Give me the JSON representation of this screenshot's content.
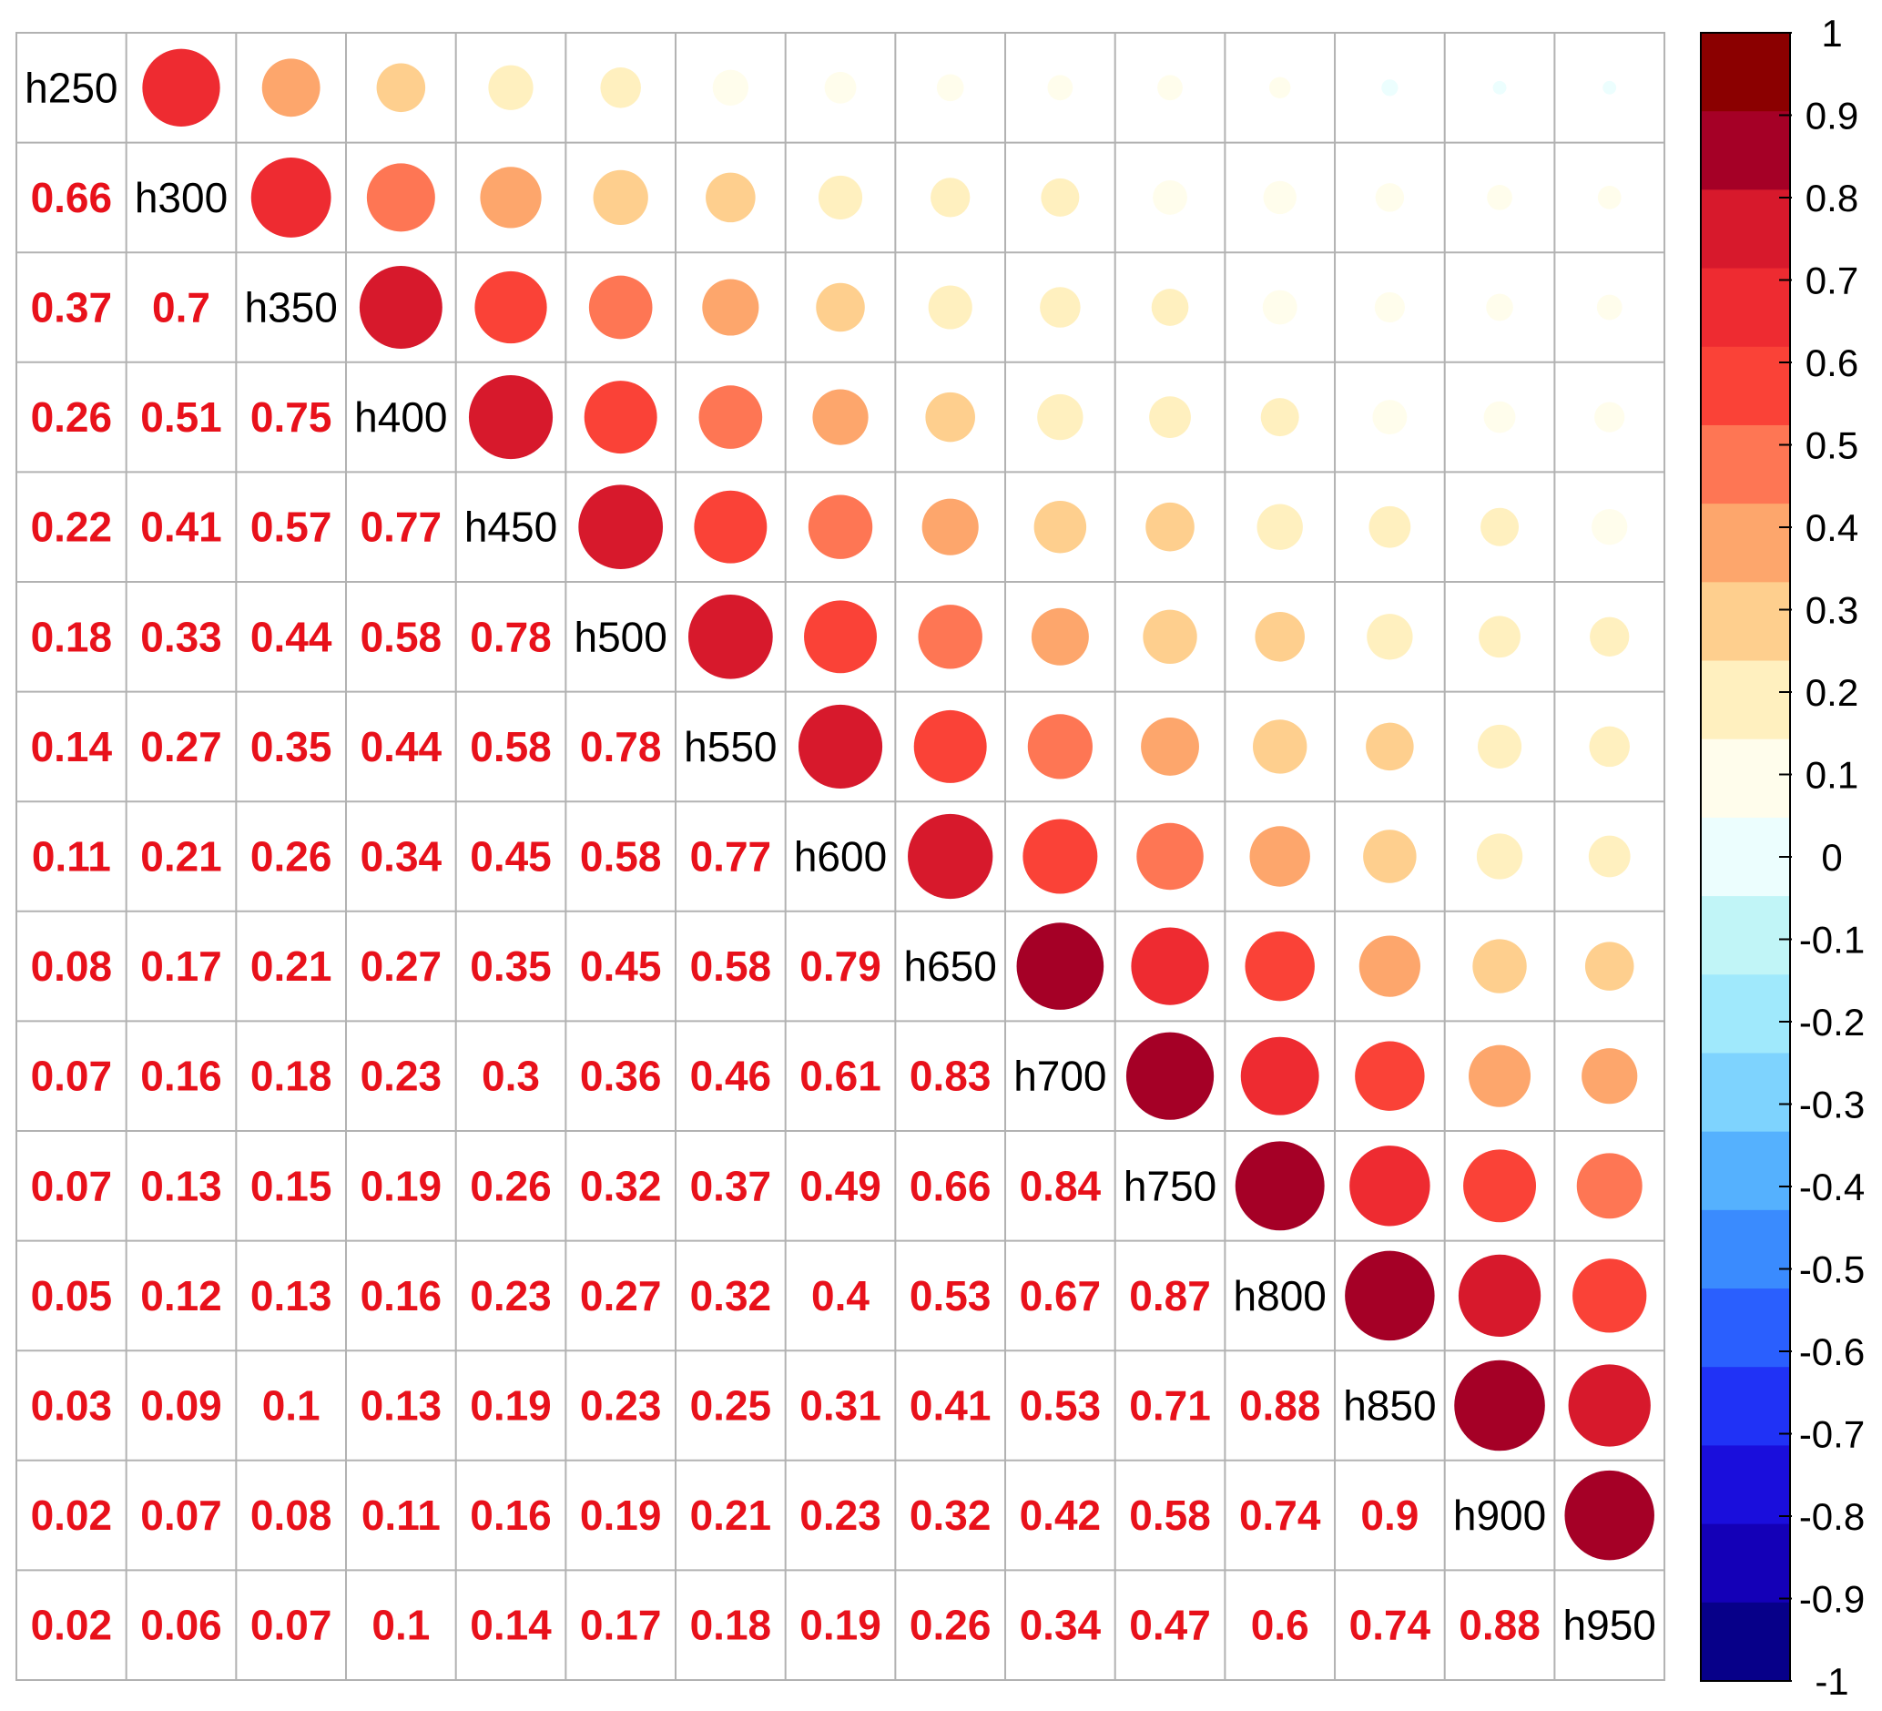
{
  "chart_data": {
    "type": "heatmap",
    "title": "",
    "variables": [
      "h250",
      "h300",
      "h350",
      "h400",
      "h450",
      "h500",
      "h550",
      "h600",
      "h650",
      "h700",
      "h750",
      "h800",
      "h850",
      "h900",
      "h950"
    ],
    "lower_triangle_values": [
      [],
      [
        0.66
      ],
      [
        0.37,
        0.7
      ],
      [
        0.26,
        0.51,
        0.75
      ],
      [
        0.22,
        0.41,
        0.57,
        0.77
      ],
      [
        0.18,
        0.33,
        0.44,
        0.58,
        0.78
      ],
      [
        0.14,
        0.27,
        0.35,
        0.44,
        0.58,
        0.78
      ],
      [
        0.11,
        0.21,
        0.26,
        0.34,
        0.45,
        0.58,
        0.77
      ],
      [
        0.08,
        0.17,
        0.21,
        0.27,
        0.35,
        0.45,
        0.58,
        0.79
      ],
      [
        0.07,
        0.16,
        0.18,
        0.23,
        0.3,
        0.36,
        0.46,
        0.61,
        0.83
      ],
      [
        0.07,
        0.13,
        0.15,
        0.19,
        0.26,
        0.32,
        0.37,
        0.49,
        0.66,
        0.84
      ],
      [
        0.05,
        0.12,
        0.13,
        0.16,
        0.23,
        0.27,
        0.32,
        0.4,
        0.53,
        0.67,
        0.87
      ],
      [
        0.03,
        0.09,
        0.1,
        0.13,
        0.19,
        0.23,
        0.25,
        0.31,
        0.41,
        0.53,
        0.71,
        0.88
      ],
      [
        0.02,
        0.07,
        0.08,
        0.11,
        0.16,
        0.19,
        0.21,
        0.23,
        0.32,
        0.42,
        0.58,
        0.74,
        0.9
      ],
      [
        0.02,
        0.06,
        0.07,
        0.1,
        0.14,
        0.17,
        0.18,
        0.19,
        0.26,
        0.34,
        0.47,
        0.6,
        0.74,
        0.88
      ]
    ],
    "upper_triangle": "circles sized and colored by correlation (mirror of lower triangle)",
    "diagonal": "variable names",
    "colorbar": {
      "range": [
        -1,
        1
      ],
      "ticks": [
        "1",
        "0.9",
        "0.8",
        "0.7",
        "0.6",
        "0.5",
        "0.4",
        "0.3",
        "0.2",
        "0.1",
        "0",
        "-0.1",
        "-0.2",
        "-0.3",
        "-0.4",
        "-0.5",
        "-0.6",
        "-0.7",
        "-0.8",
        "-0.9",
        "-1"
      ],
      "colors_top_to_bottom": [
        "#8b0000",
        "#a50026",
        "#d7192c",
        "#ee2b31",
        "#fa4237",
        "#fe7654",
        "#fda66c",
        "#fecf8e",
        "#fff0bf",
        "#fffdec",
        "#ecfefe",
        "#c1f5f7",
        "#a0e9fc",
        "#7ed3fe",
        "#55b1fe",
        "#3a8bfe",
        "#2a5ffe",
        "#2032f6",
        "#1a0edc",
        "#1400b7",
        "#070089"
      ]
    },
    "number_color": "#e8111b",
    "grid_color": "#b2b2b2"
  }
}
